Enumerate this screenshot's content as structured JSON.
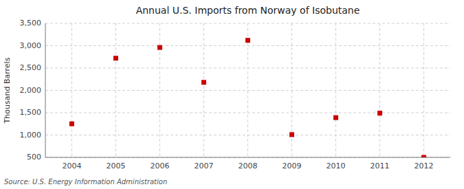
{
  "chart_data": {
    "type": "scatter",
    "title": "Annual U.S. Imports from Norway of Isobutane",
    "ylabel": "Thousand Barrels",
    "source": "Source: U.S. Energy Information Administration",
    "x": [
      2004,
      2005,
      2006,
      2007,
      2008,
      2009,
      2010,
      2011,
      2012
    ],
    "values": [
      1252,
      2720,
      2960,
      2180,
      3120,
      1010,
      1390,
      1490,
      500
    ],
    "color": "#cc0000",
    "marker": "square",
    "xlim": [
      2003.4,
      2012.6
    ],
    "xticks": [
      2004,
      2005,
      2006,
      2007,
      2008,
      2009,
      2010,
      2011,
      2012
    ],
    "ylim": [
      500,
      3500
    ],
    "yticks": [
      500,
      {
        "value": 1000,
        "label": "1,000"
      },
      {
        "value": 1500,
        "label": "1,500"
      },
      {
        "value": 2000,
        "label": "2,000"
      },
      {
        "value": 2500,
        "label": "2,500"
      },
      {
        "value": 3000,
        "label": "3,000"
      },
      {
        "value": 3500,
        "label": "3,500"
      }
    ],
    "grid": true
  }
}
